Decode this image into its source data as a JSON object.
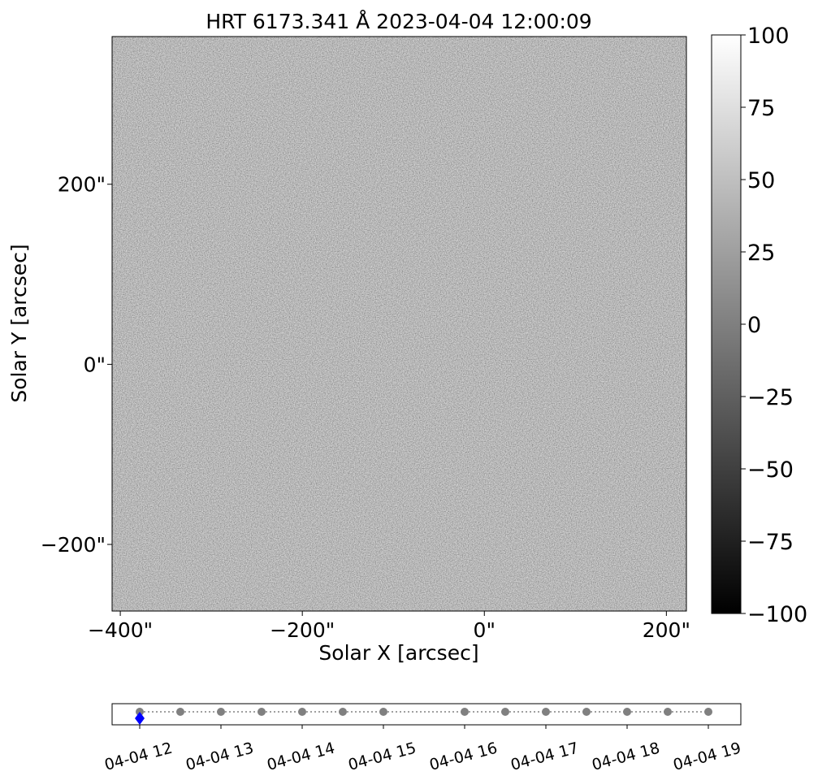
{
  "chart_data": [
    {
      "type": "image",
      "title": "HRT 6173.341 Å 2023-04-04 12:00:09",
      "x_label": "Solar X [arcsec]",
      "y_label": "Solar Y [arcsec]",
      "xlim": [
        -409,
        222
      ],
      "ylim": [
        -274,
        364
      ],
      "xticks": [
        {
          "value": -400,
          "label": "−400\""
        },
        {
          "value": -200,
          "label": "−200\""
        },
        {
          "value": 0,
          "label": "0\""
        },
        {
          "value": 200,
          "label": "200\""
        }
      ],
      "yticks": [
        {
          "value": -200,
          "label": "−200\""
        },
        {
          "value": 0,
          "label": "0\""
        },
        {
          "value": 200,
          "label": "200\""
        }
      ]
    },
    {
      "type": "colorbar",
      "ylim": [
        -100,
        100
      ],
      "yticks": [
        {
          "value": -100,
          "label": "−100"
        },
        {
          "value": -75,
          "label": "−75"
        },
        {
          "value": -50,
          "label": "−50"
        },
        {
          "value": -25,
          "label": "−25"
        },
        0,
        25,
        50,
        75,
        100
      ]
    },
    {
      "type": "timeline",
      "x": [
        12,
        12.5,
        13,
        13.5,
        14,
        14.5,
        15,
        16,
        16.5,
        17,
        17.5,
        18,
        18.5,
        19
      ],
      "selected": 12,
      "color": "#808080",
      "selected_color": "#0000ff",
      "xlim": [
        11.66,
        19.4
      ],
      "xticks": [
        {
          "value": 12,
          "label": "04-04 12"
        },
        {
          "value": 13,
          "label": "04-04 13"
        },
        {
          "value": 14,
          "label": "04-04 14"
        },
        {
          "value": 15,
          "label": "04-04 15"
        },
        {
          "value": 16,
          "label": "04-04 16"
        },
        {
          "value": 17,
          "label": "04-04 17"
        },
        {
          "value": 18,
          "label": "04-04 18"
        },
        {
          "value": 19,
          "label": "04-04 19"
        }
      ]
    }
  ]
}
